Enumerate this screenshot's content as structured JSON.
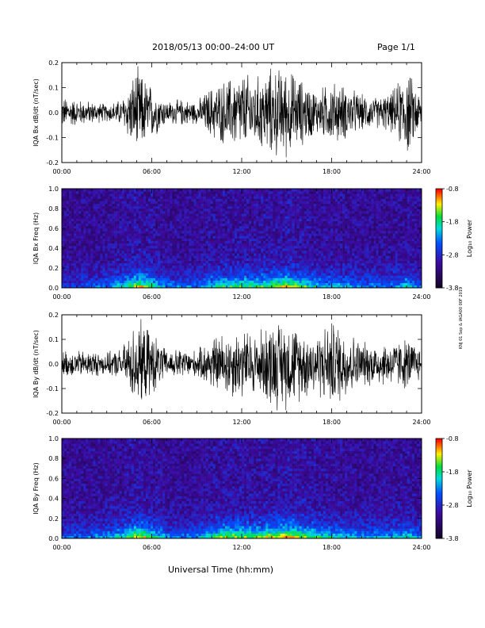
{
  "header": {
    "title": "2018/05/13  00:00–24:00 UT",
    "page": "Page 1/1"
  },
  "footer": {
    "xlabel": "Universal Time (hh:mm)"
  },
  "side_note": "KNJ 01 Sep & IAGA00 00F 2019",
  "colors": {
    "trace": "#000000",
    "spectrogram_low": "#1a0a3a",
    "spectrogram_high": "#ff0000"
  },
  "chart_data": [
    {
      "type": "line",
      "id": "bx_waveform",
      "ylabel": "IQA Bx dB/dt (nT/sec)",
      "ylim": [
        -0.2,
        0.2
      ],
      "yticks": [
        "-0.2",
        "-0.1",
        "0.0",
        "0.1",
        "0.2"
      ],
      "xlim": [
        0,
        24
      ],
      "xticks": [
        "00:00",
        "06:00",
        "12:00",
        "18:00",
        "24:00"
      ],
      "x": [
        0,
        1,
        2,
        3,
        4,
        5,
        6,
        7,
        8,
        9,
        10,
        11,
        12,
        13,
        14,
        15,
        16,
        17,
        18,
        19,
        20,
        21,
        22,
        23,
        24
      ],
      "amplitude": [
        0.07,
        0.06,
        0.05,
        0.04,
        0.06,
        0.2,
        0.12,
        0.05,
        0.06,
        0.05,
        0.12,
        0.15,
        0.18,
        0.16,
        0.2,
        0.2,
        0.15,
        0.1,
        0.14,
        0.12,
        0.08,
        0.07,
        0.09,
        0.2,
        0.07
      ]
    },
    {
      "type": "heatmap",
      "id": "bx_spectrogram",
      "ylabel": "IQA Bx Freq (Hz)",
      "ylim": [
        0.0,
        1.0
      ],
      "yticks": [
        "0.0",
        "0.2",
        "0.4",
        "0.6",
        "0.8",
        "1.0"
      ],
      "xlim": [
        0,
        24
      ],
      "xticks": [
        "00:00",
        "06:00",
        "12:00",
        "18:00",
        "24:00"
      ],
      "colorbar": {
        "label": "Log₁₀ Power",
        "range": [
          -3.8,
          -0.8
        ],
        "ticks": [
          "-0.8",
          "-1.8",
          "-2.8",
          "-3.8"
        ]
      },
      "activity_by_hour": [
        0.2,
        0.2,
        0.25,
        0.3,
        0.45,
        0.7,
        0.5,
        0.3,
        0.3,
        0.3,
        0.45,
        0.5,
        0.55,
        0.5,
        0.6,
        0.7,
        0.55,
        0.4,
        0.4,
        0.35,
        0.3,
        0.3,
        0.3,
        0.45,
        0.2
      ]
    },
    {
      "type": "line",
      "id": "by_waveform",
      "ylabel": "IQA By dB/dt (nT/sec)",
      "ylim": [
        -0.2,
        0.2
      ],
      "yticks": [
        "-0.2",
        "-0.1",
        "0.0",
        "0.1",
        "0.2"
      ],
      "xlim": [
        0,
        24
      ],
      "xticks": [
        "00:00",
        "06:00",
        "12:00",
        "18:00",
        "24:00"
      ],
      "x": [
        0,
        1,
        2,
        3,
        4,
        5,
        6,
        7,
        8,
        9,
        10,
        11,
        12,
        13,
        14,
        15,
        16,
        17,
        18,
        19,
        20,
        21,
        22,
        23,
        24
      ],
      "amplitude": [
        0.06,
        0.06,
        0.06,
        0.05,
        0.07,
        0.2,
        0.15,
        0.06,
        0.07,
        0.06,
        0.12,
        0.15,
        0.16,
        0.14,
        0.2,
        0.2,
        0.16,
        0.14,
        0.2,
        0.16,
        0.1,
        0.1,
        0.1,
        0.12,
        0.07
      ]
    },
    {
      "type": "heatmap",
      "id": "by_spectrogram",
      "ylabel": "IQA By Freq (Hz)",
      "ylim": [
        0.0,
        1.0
      ],
      "yticks": [
        "0.0",
        "0.2",
        "0.4",
        "0.6",
        "0.8",
        "1.0"
      ],
      "xlim": [
        0,
        24
      ],
      "xticks": [
        "00:00",
        "06:00",
        "12:00",
        "18:00",
        "24:00"
      ],
      "colorbar": {
        "label": "Log₁₀ Power",
        "range": [
          -3.8,
          -0.8
        ],
        "ticks": [
          "-0.8",
          "-1.8",
          "-2.8",
          "-3.8"
        ]
      },
      "activity_by_hour": [
        0.25,
        0.25,
        0.3,
        0.35,
        0.45,
        0.7,
        0.55,
        0.3,
        0.3,
        0.35,
        0.5,
        0.6,
        0.6,
        0.55,
        0.65,
        0.75,
        0.6,
        0.5,
        0.45,
        0.4,
        0.35,
        0.35,
        0.35,
        0.45,
        0.25
      ]
    }
  ]
}
